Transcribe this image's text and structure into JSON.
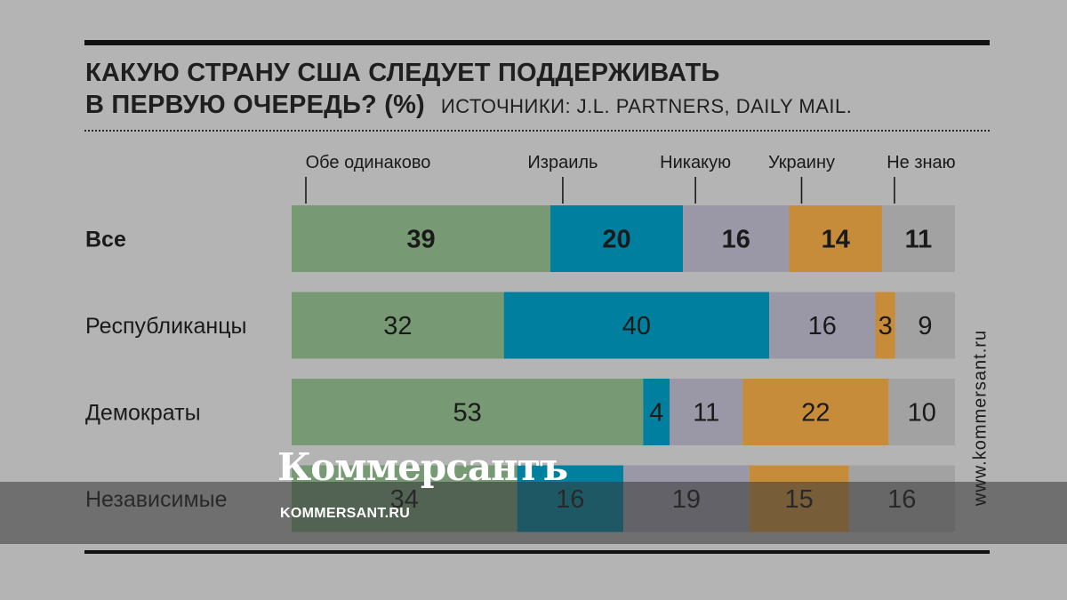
{
  "title_line1": "КАКУЮ СТРАНУ США СЛЕДУЕТ ПОДДЕРЖИВАТЬ",
  "title_line2": "В ПЕРВУЮ ОЧЕРЕДЬ? (%)",
  "source": "ИСТОЧНИКИ: J.L. PARTNERS, DAILY MAIL.",
  "watermark_vertical": "www.kommersant.ru",
  "brand": "Коммерсантъ",
  "brand_sub": "KOMMERSANT.RU",
  "chart_data": {
    "type": "bar",
    "orientation": "horizontal-stacked",
    "categories": [
      "Все",
      "Республиканцы",
      "Демократы",
      "Независимые"
    ],
    "series": [
      {
        "name": "Обе одинаково",
        "color": "#779a75",
        "values": [
          39,
          32,
          53,
          34
        ]
      },
      {
        "name": "Израиль",
        "color": "#00809e",
        "values": [
          20,
          40,
          4,
          16
        ]
      },
      {
        "name": "Никакую",
        "color": "#9a98a6",
        "values": [
          16,
          16,
          11,
          19
        ]
      },
      {
        "name": "Украину",
        "color": "#c68c3a",
        "values": [
          14,
          3,
          22,
          15
        ]
      },
      {
        "name": "Не знаю",
        "color": "#a2a2a2",
        "values": [
          11,
          9,
          10,
          16
        ]
      }
    ],
    "bold_rows": [
      0
    ],
    "legend_position": "top"
  }
}
